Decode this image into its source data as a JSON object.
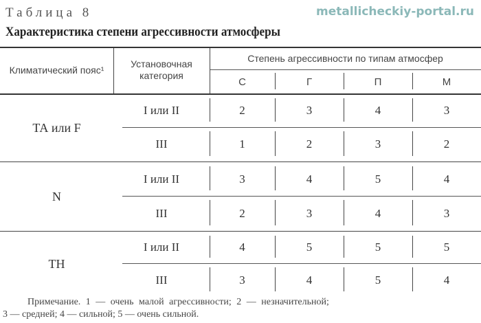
{
  "caption": "Таблица 8",
  "title": "Характеристика степени агрессивности атмосферы",
  "header": {
    "zone": "Климатический пояс¹",
    "category": "Установочная категория",
    "degree": "Степень агрессивности по типам атмосфер",
    "types": [
      "С",
      "Г",
      "П",
      "М"
    ]
  },
  "rows": [
    {
      "zone": "ТА или F",
      "sub": [
        {
          "category": "I или II",
          "values": [
            "2",
            "3",
            "4",
            "3"
          ]
        },
        {
          "category": "III",
          "values": [
            "1",
            "2",
            "3",
            "2"
          ]
        }
      ]
    },
    {
      "zone": "N",
      "sub": [
        {
          "category": "I или II",
          "values": [
            "3",
            "4",
            "5",
            "4"
          ]
        },
        {
          "category": "III",
          "values": [
            "2",
            "3",
            "4",
            "3"
          ]
        }
      ]
    },
    {
      "zone": "TH",
      "sub": [
        {
          "category": "I или II",
          "values": [
            "4",
            "5",
            "5",
            "5"
          ]
        },
        {
          "category": "III",
          "values": [
            "3",
            "4",
            "5",
            "4"
          ]
        }
      ]
    }
  ],
  "note": {
    "line1": "Примечание. 1 — очень малой агрессивности;   2 — незначительной;",
    "line2": "3 — средней; 4 — сильной; 5 — очень сильной."
  },
  "watermark": {
    "line1": "metallicheckiy",
    "line2": "-portal.ru"
  }
}
